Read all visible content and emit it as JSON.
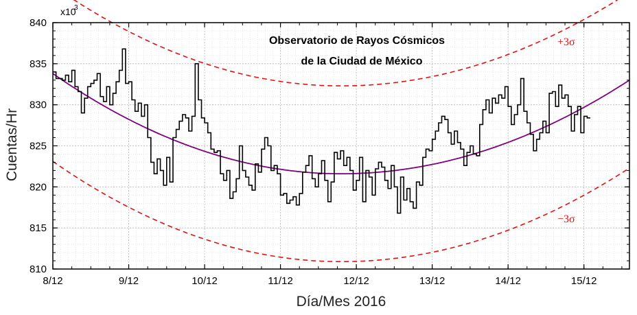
{
  "chart_data": {
    "type": "line",
    "title_lines": [
      "Observatorio de Rayos Cósmicos",
      "de la Ciudad de México"
    ],
    "xlabel": "Día/Mes 2016",
    "ylabel": "Cuentas/Hr",
    "y_multiplier": "x10",
    "y_multiplier_exp": "3",
    "xlim": [
      8.0,
      15.6
    ],
    "ylim": [
      810,
      840
    ],
    "x_ticks": [
      8,
      9,
      10,
      11,
      12,
      13,
      14,
      15
    ],
    "x_tick_labels": [
      "8/12",
      "9/12",
      "10/12",
      "11/12",
      "12/12",
      "13/12",
      "14/12",
      "15/12"
    ],
    "y_ticks": [
      810,
      815,
      820,
      825,
      830,
      835,
      840
    ],
    "y_tick_labels": [
      "810",
      "815",
      "820",
      "825",
      "830",
      "835",
      "840"
    ],
    "grid": true,
    "sigma_plus_label": "+3σ",
    "sigma_minus_label": "−3σ",
    "colors": {
      "data": "#000000",
      "fit": "#800080",
      "sigma": "#e01010"
    },
    "fit": {
      "vertex_x": 11.8,
      "vertex_y": 821.6,
      "left_end_y": 833.8,
      "right_end_y": 833.0,
      "sigma_offset": 10.7
    },
    "series": [
      {
        "style": "step",
        "x0": 8.0,
        "dx": 0.04167,
        "values": [
          834.0,
          833.2,
          833.2,
          833.0,
          833.6,
          832.8,
          834.2,
          832.2,
          831.6,
          829.0,
          830.8,
          832.2,
          832.6,
          833.0,
          833.8,
          831.0,
          830.4,
          832.2,
          830.0,
          831.4,
          832.8,
          834.2,
          836.8,
          832.6,
          832.8,
          830.6,
          829.2,
          830.2,
          828.6,
          830.0,
          826.0,
          823.0,
          821.6,
          823.4,
          822.0,
          820.2,
          823.6,
          820.6,
          826.0,
          827.0,
          828.0,
          828.8,
          828.4,
          826.8,
          828.6,
          835.0,
          830.6,
          828.4,
          827.8,
          826.6,
          824.6,
          824.2,
          824.4,
          821.6,
          820.8,
          822.0,
          818.6,
          819.4,
          821.0,
          825.0,
          822.0,
          821.2,
          820.2,
          819.6,
          822.8,
          821.8,
          824.6,
          826.0,
          825.0,
          822.0,
          822.6,
          821.6,
          819.0,
          819.2,
          818.0,
          818.4,
          818.8,
          817.8,
          819.2,
          821.8,
          822.6,
          823.8,
          821.0,
          820.0,
          821.6,
          823.2,
          820.8,
          818.2,
          820.6,
          824.2,
          823.4,
          824.4,
          822.6,
          823.6,
          822.0,
          819.6,
          820.8,
          823.6,
          818.2,
          822.0,
          821.2,
          819.0,
          822.2,
          823.0,
          822.4,
          820.8,
          819.8,
          822.6,
          820.0,
          816.8,
          821.2,
          818.4,
          819.8,
          818.2,
          817.4,
          820.6,
          820.2,
          823.6,
          824.6,
          824.4,
          825.8,
          826.8,
          827.8,
          828.6,
          828.2,
          826.6,
          825.2,
          826.8,
          825.4,
          824.6,
          822.6,
          824.2,
          825.0,
          824.0,
          823.8,
          827.6,
          829.4,
          830.6,
          829.0,
          830.8,
          830.2,
          831.2,
          830.8,
          832.2,
          829.8,
          827.6,
          828.8,
          830.0,
          833.2,
          829.2,
          827.8,
          826.4,
          824.4,
          825.8,
          826.6,
          828.0,
          826.6,
          831.4,
          831.6,
          829.8,
          832.4,
          830.8,
          831.2,
          829.8,
          826.8,
          828.8,
          829.8,
          826.6,
          828.6,
          828.4
        ]
      }
    ]
  }
}
